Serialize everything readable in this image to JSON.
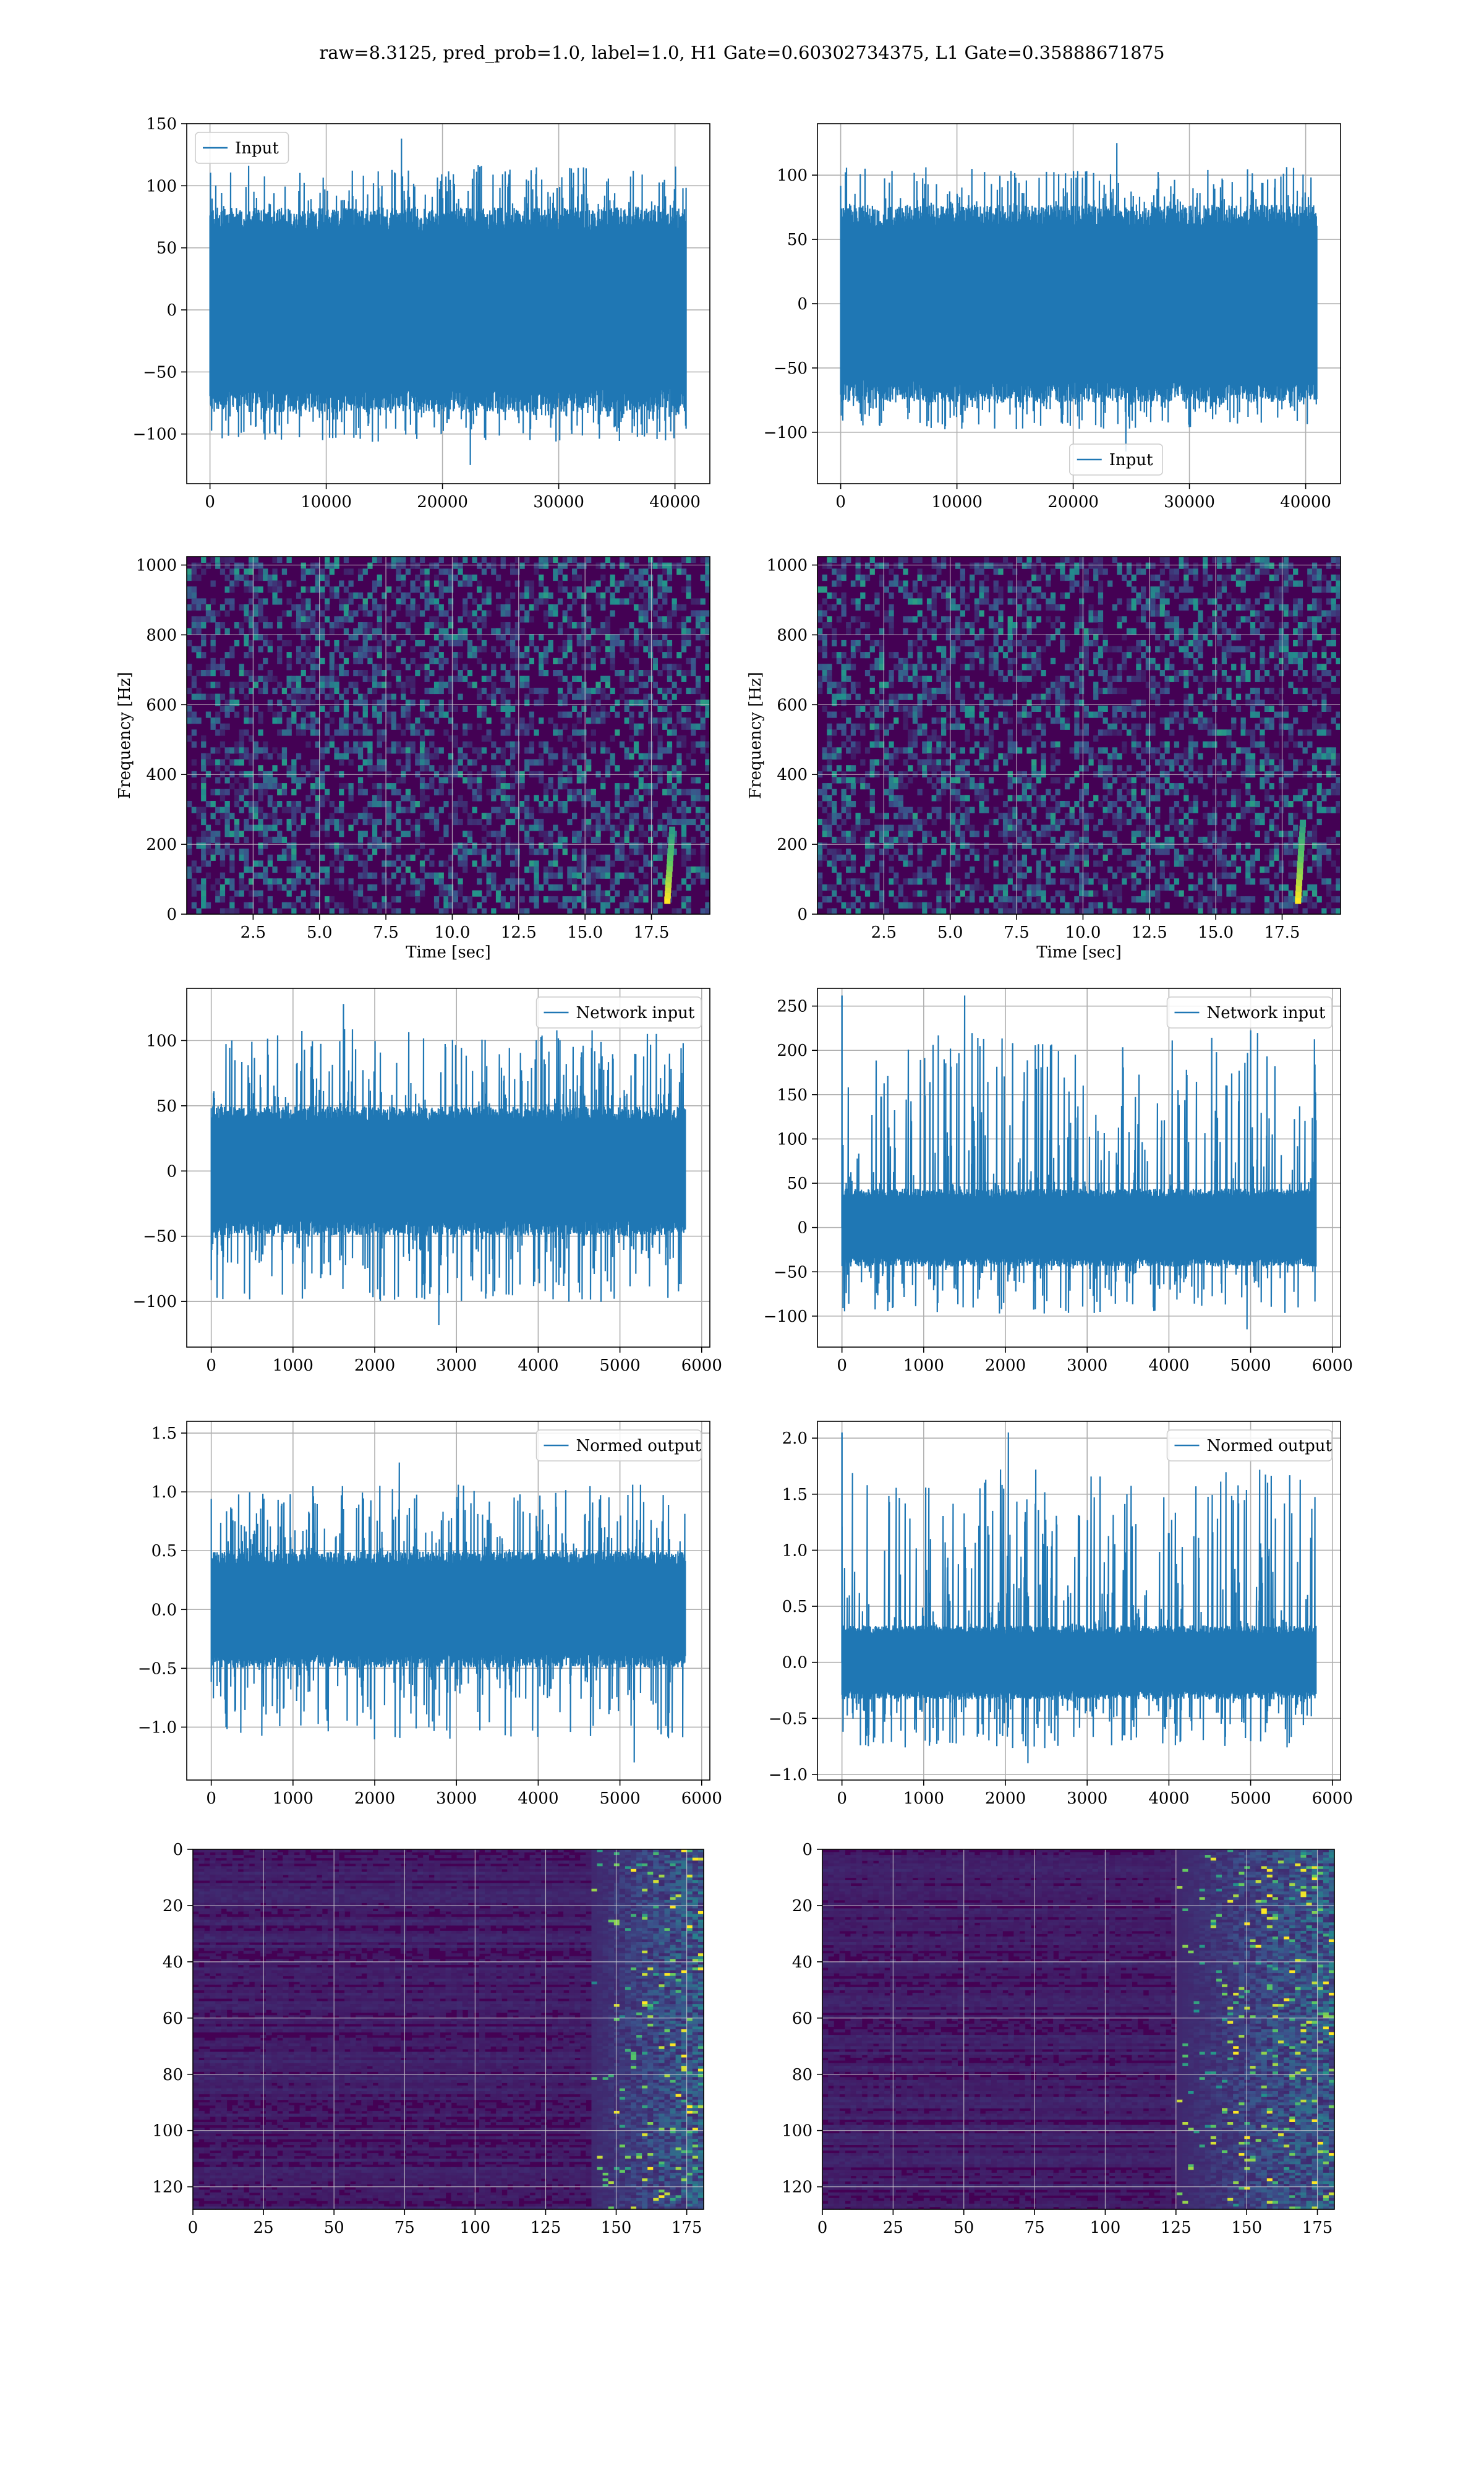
{
  "title": "raw=8.3125, pred_prob=1.0, label=1.0, H1 Gate=0.60302734375, L1 Gate=0.35888671875",
  "colors": {
    "line": "#1f77b4",
    "grid": "#b0b0b0",
    "viridis_low": "#440154",
    "viridis_mid": "#21918c",
    "viridis_high": "#fde725"
  },
  "chart_data": [
    {
      "id": "input-h1",
      "type": "line",
      "series": [
        {
          "name": "Input",
          "x_range": [
            0,
            40960
          ],
          "amplitude_core": 75,
          "peak_max": 138,
          "peak_min": -125
        }
      ],
      "legend": "Input",
      "legend_loc": "upper-left",
      "xlim": [
        -2000,
        43000
      ],
      "ylim": [
        -140,
        150
      ],
      "xticks": [
        0,
        10000,
        20000,
        30000,
        40000
      ],
      "yticks": [
        -100,
        -50,
        0,
        50,
        100,
        150
      ],
      "grid": true
    },
    {
      "id": "input-l1",
      "type": "line",
      "series": [
        {
          "name": "Input",
          "x_range": [
            0,
            40960
          ],
          "amplitude_core": 70,
          "peak_max": 125,
          "peak_min": -115
        }
      ],
      "legend": "Input",
      "legend_loc": "lower-center",
      "xlim": [
        -2000,
        43000
      ],
      "ylim": [
        -140,
        140
      ],
      "xticks": [
        0,
        10000,
        20000,
        30000,
        40000
      ],
      "yticks": [
        -100,
        -50,
        0,
        50,
        100
      ],
      "grid": true
    },
    {
      "id": "spec-h1",
      "type": "heatmap",
      "xlabel": "Time [sec]",
      "ylabel": "Frequency [Hz]",
      "xlim": [
        0,
        19.7
      ],
      "ylim": [
        0,
        1024
      ],
      "xticks": [
        2.5,
        5.0,
        7.5,
        10.0,
        12.5,
        15.0,
        17.5
      ],
      "yticks": [
        0,
        200,
        400,
        600,
        800,
        1000
      ],
      "grid": true,
      "colormap": "viridis",
      "hotspot": {
        "time": 18.1,
        "freq_range": [
          40,
          240
        ]
      }
    },
    {
      "id": "spec-l1",
      "type": "heatmap",
      "xlabel": "Time [sec]",
      "ylabel": "Frequency [Hz]",
      "xlim": [
        0,
        19.7
      ],
      "ylim": [
        0,
        1024
      ],
      "xticks": [
        2.5,
        5.0,
        7.5,
        10.0,
        12.5,
        15.0,
        17.5
      ],
      "yticks": [
        0,
        200,
        400,
        600,
        800,
        1000
      ],
      "grid": true,
      "colormap": "viridis",
      "hotspot": {
        "time": 18.1,
        "freq_range": [
          40,
          260
        ]
      }
    },
    {
      "id": "net-h1",
      "type": "line",
      "series": [
        {
          "name": "Network input",
          "x_range": [
            0,
            5800
          ],
          "amplitude_core": 45,
          "peak_max": 128,
          "peak_min": -118
        }
      ],
      "legend": "Network input",
      "legend_loc": "upper-right",
      "xlim": [
        -300,
        6100
      ],
      "ylim": [
        -135,
        140
      ],
      "xticks": [
        0,
        1000,
        2000,
        3000,
        4000,
        5000,
        6000
      ],
      "yticks": [
        -100,
        -50,
        0,
        50,
        100
      ],
      "grid": true
    },
    {
      "id": "net-l1",
      "type": "line",
      "series": [
        {
          "name": "Network input",
          "x_range": [
            0,
            5800
          ],
          "amplitude_core": 40,
          "peak_max": 262,
          "peak_min": -115,
          "spike": {
            "x": 0,
            "y": 262
          }
        }
      ],
      "legend": "Network input",
      "legend_loc": "upper-right",
      "xlim": [
        -300,
        6100
      ],
      "ylim": [
        -135,
        270
      ],
      "xticks": [
        0,
        1000,
        2000,
        3000,
        4000,
        5000,
        6000
      ],
      "yticks": [
        -100,
        -50,
        0,
        50,
        100,
        150,
        200,
        250
      ],
      "grid": true
    },
    {
      "id": "norm-h1",
      "type": "line",
      "series": [
        {
          "name": "Normed output",
          "x_range": [
            0,
            5800
          ],
          "amplitude_core": 0.45,
          "peak_max": 1.25,
          "peak_min": -1.3
        }
      ],
      "legend": "Normed output",
      "legend_loc": "upper-right",
      "xlim": [
        -300,
        6100
      ],
      "ylim": [
        -1.45,
        1.6
      ],
      "xticks": [
        0,
        1000,
        2000,
        3000,
        4000,
        5000,
        6000
      ],
      "yticks": [
        -1.0,
        -0.5,
        0.0,
        0.5,
        1.0,
        1.5
      ],
      "grid": true
    },
    {
      "id": "norm-l1",
      "type": "line",
      "series": [
        {
          "name": "Normed output",
          "x_range": [
            0,
            5800
          ],
          "amplitude_core": 0.3,
          "peak_max": 2.05,
          "peak_min": -0.9,
          "spike": {
            "x": 0,
            "y": 2.05
          }
        }
      ],
      "legend": "Normed output",
      "legend_loc": "upper-right",
      "xlim": [
        -300,
        6100
      ],
      "ylim": [
        -1.05,
        2.15
      ],
      "xticks": [
        0,
        1000,
        2000,
        3000,
        4000,
        5000,
        6000
      ],
      "yticks": [
        -1.0,
        -0.5,
        0.0,
        0.5,
        1.0,
        1.5,
        2.0
      ],
      "grid": true
    },
    {
      "id": "feat-h1",
      "type": "heatmap",
      "xlim": [
        0,
        181
      ],
      "ylim": [
        128,
        0
      ],
      "xticks": [
        0,
        25,
        50,
        75,
        100,
        125,
        150,
        175
      ],
      "yticks": [
        0,
        20,
        40,
        60,
        80,
        100,
        120
      ],
      "grid": true,
      "colormap": "viridis",
      "active_region": {
        "x_from": 140,
        "x_to": 181
      }
    },
    {
      "id": "feat-l1",
      "type": "heatmap",
      "xlim": [
        0,
        181
      ],
      "ylim": [
        128,
        0
      ],
      "xticks": [
        0,
        25,
        50,
        75,
        100,
        125,
        150,
        175
      ],
      "yticks": [
        0,
        20,
        40,
        60,
        80,
        100,
        120
      ],
      "grid": true,
      "colormap": "viridis",
      "active_region": {
        "x_from": 125,
        "x_to": 181
      }
    }
  ]
}
